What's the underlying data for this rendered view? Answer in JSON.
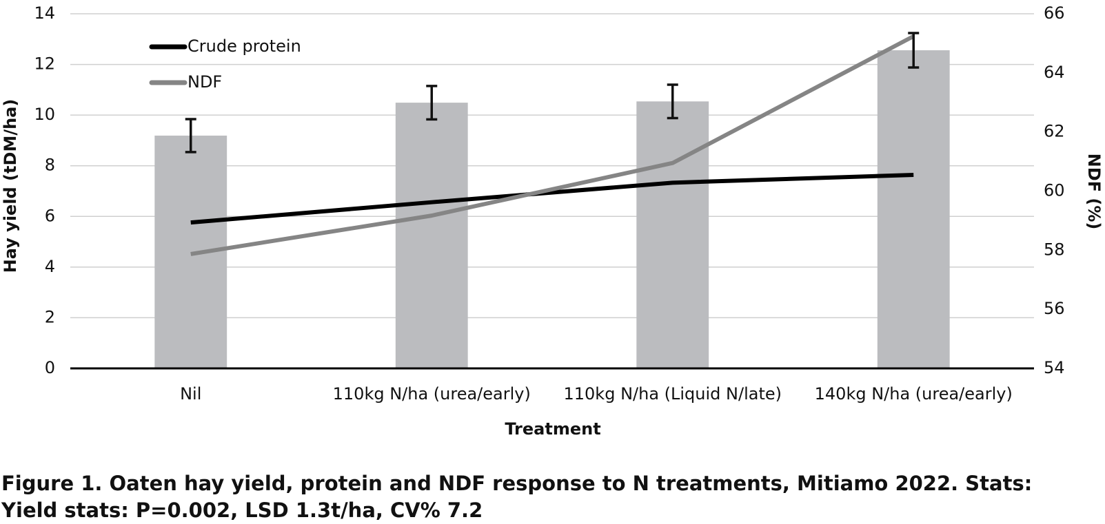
{
  "chart_data": {
    "type": "bar",
    "title": [
      "Figure 1. Oaten hay yield, protein and NDF response to N treatments, Mitiamo 2022. Stats:",
      "Yield stats: P=0.002, LSD 1.3t/ha, CV% 7.2"
    ],
    "x_label": "Treatment",
    "y_label": "Hay yield (tDM/ha)",
    "y2_label": "NDF (%)",
    "categories": [
      "Nil",
      "110kg N/ha (urea/early)",
      "110kg N/ha (Liquid N/late)",
      "140kg N/ha (urea/early)"
    ],
    "values": [
      9.19,
      10.49,
      10.54,
      12.56
    ],
    "errors": [
      0.65,
      0.66,
      0.66,
      0.68
    ],
    "color": "#bbbcbf",
    "error_color": "#111111",
    "series": [
      {
        "name": "Crude protein",
        "color": "#000000",
        "values": [
          5.76,
          6.56,
          7.33,
          7.64
        ]
      },
      {
        "name": "NDF",
        "color": "#858585",
        "axis": "y2",
        "values": [
          57.87,
          59.17,
          60.95,
          65.24
        ]
      }
    ],
    "ylim": [
      0,
      14
    ],
    "yticks": [
      0,
      2,
      4,
      6,
      8,
      10,
      12,
      14
    ],
    "y2lim": [
      54,
      66
    ],
    "y2ticks": [
      54,
      56,
      58,
      60,
      62,
      64,
      66
    ],
    "grid": true,
    "legend": "top-left"
  }
}
